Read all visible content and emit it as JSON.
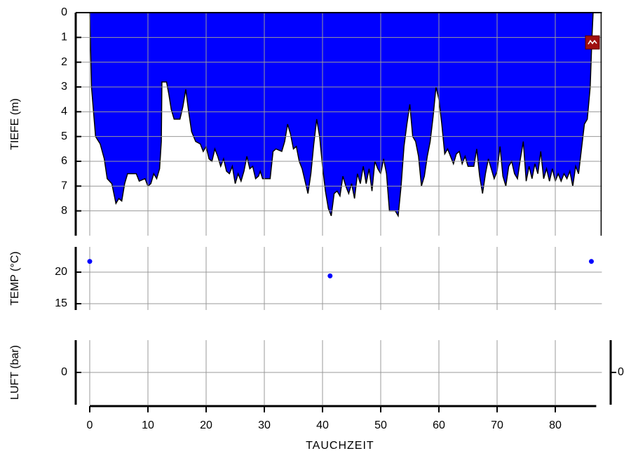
{
  "chart_data": [
    {
      "type": "area",
      "ylabel": "TIEFE (m)",
      "color": "#0000ff",
      "y_inverted": true,
      "xlim": [
        -2,
        88
      ],
      "xticks": [
        0,
        10,
        20,
        30,
        40,
        50,
        60,
        70,
        80
      ],
      "ylim": [
        0,
        9
      ],
      "yticks": [
        0,
        1,
        2,
        3,
        4,
        5,
        6,
        7,
        8
      ],
      "grid": true,
      "x": [
        0,
        0.3,
        1,
        1.8,
        2.5,
        3,
        3.8,
        4.5,
        5,
        5.5,
        6,
        6.5,
        8,
        8.5,
        9.5,
        10,
        10.5,
        11,
        11.5,
        12,
        12.3,
        12.4,
        13.2,
        13.6,
        14,
        14.5,
        15.5,
        16,
        16.5,
        17,
        17.5,
        18.2,
        19,
        19.5,
        20,
        20.5,
        21,
        21.5,
        22,
        22.5,
        23,
        23.5,
        24,
        24.5,
        25,
        25.5,
        26,
        26.5,
        27,
        27.5,
        28,
        28.5,
        29,
        29.3,
        29.7,
        31,
        31.5,
        32,
        33,
        33.5,
        34,
        34.5,
        35,
        35.5,
        36,
        36.5,
        37,
        37.5,
        38,
        38.5,
        39,
        39.5,
        40,
        40.5,
        41,
        41.5,
        42,
        42.5,
        43,
        43.5,
        44,
        44.5,
        45,
        45.5,
        46,
        46.5,
        47,
        47.5,
        48,
        48.5,
        49,
        49.5,
        50,
        50.5,
        51,
        51.5,
        52.5,
        53,
        53.5,
        54,
        54.5,
        55,
        55.5,
        56,
        56.5,
        57,
        57.5,
        58,
        58.5,
        59,
        59.5,
        60,
        60.5,
        61,
        61.5,
        62,
        62.5,
        63,
        63.5,
        64,
        64.5,
        65,
        66,
        66.5,
        67,
        67.5,
        68,
        68.5,
        69,
        69.5,
        70,
        70.5,
        71,
        71.5,
        72,
        72.5,
        73,
        73.5,
        74,
        74.5,
        75,
        75.5,
        76,
        76.5,
        77,
        77.5,
        78,
        78.5,
        79,
        79.5,
        80,
        80.5,
        81,
        81.5,
        82,
        82.5,
        83,
        83.5,
        84,
        84.5,
        85,
        85.5,
        86,
        86.3,
        86.5
      ],
      "values": [
        0,
        3,
        5,
        5.3,
        5.9,
        6.7,
        6.9,
        7.7,
        7.5,
        7.6,
        6.9,
        6.5,
        6.5,
        6.8,
        6.7,
        7.0,
        6.9,
        6.5,
        6.7,
        6.3,
        5.2,
        2.8,
        2.8,
        3.3,
        3.9,
        4.3,
        4.3,
        3.8,
        3.1,
        4.0,
        4.8,
        5.2,
        5.3,
        5.6,
        5.4,
        5.9,
        6.0,
        5.5,
        5.8,
        6.2,
        5.9,
        6.4,
        6.5,
        6.2,
        6.9,
        6.5,
        6.8,
        6.4,
        5.8,
        6.3,
        6.2,
        6.7,
        6.6,
        6.4,
        6.7,
        6.7,
        5.6,
        5.5,
        5.6,
        5.2,
        4.5,
        4.9,
        5.5,
        5.4,
        6.0,
        6.3,
        6.8,
        7.3,
        6.5,
        5.3,
        4.3,
        5.0,
        6.2,
        7.2,
        7.9,
        8.2,
        7.3,
        7.2,
        7.4,
        6.6,
        7.0,
        7.3,
        6.9,
        7.5,
        6.5,
        6.9,
        6.2,
        6.9,
        6.3,
        7.2,
        6.0,
        6.3,
        6.5,
        5.9,
        6.5,
        8.0,
        8.0,
        8.2,
        7.0,
        5.4,
        4.5,
        3.7,
        5.0,
        5.2,
        5.8,
        7.0,
        6.6,
        5.8,
        5.2,
        4.2,
        3.0,
        3.5,
        4.5,
        5.7,
        5.5,
        5.8,
        6.1,
        5.7,
        5.6,
        6.1,
        5.8,
        6.2,
        6.2,
        5.5,
        6.6,
        7.3,
        6.5,
        5.9,
        6.3,
        6.7,
        6.4,
        5.4,
        6.6,
        7.0,
        6.2,
        6.0,
        6.5,
        6.7,
        5.9,
        5.2,
        6.8,
        6.2,
        6.7,
        6.1,
        6.5,
        5.6,
        6.7,
        6.3,
        6.8,
        6.3,
        6.8,
        6.5,
        6.8,
        6.5,
        6.7,
        6.4,
        7.0,
        6.2,
        6.5,
        5.5,
        4.5,
        4.3,
        3.0,
        1.0,
        0
      ]
    },
    {
      "type": "scatter",
      "ylabel": "TEMP (°C)",
      "color": "#0000ff",
      "xlim": [
        -2,
        88
      ],
      "xticks": [
        0,
        10,
        20,
        30,
        40,
        50,
        60,
        70,
        80
      ],
      "ylim": [
        14,
        24
      ],
      "yticks": [
        15,
        20
      ],
      "grid": true,
      "x": [
        0,
        41.3,
        86.2
      ],
      "values": [
        21.7,
        19.4,
        21.7
      ]
    },
    {
      "type": "line",
      "ylabel": "LUFT (bar)",
      "xlabel": "TAUCHZEIT",
      "xlim": [
        -2,
        88
      ],
      "xticks": [
        0,
        10,
        20,
        30,
        40,
        50,
        60,
        70,
        80
      ],
      "ylim": [
        -1,
        1
      ],
      "yticks": [
        0
      ],
      "y2lim": [
        -1,
        1
      ],
      "y2ticks": [
        0
      ],
      "grid": true
    }
  ]
}
